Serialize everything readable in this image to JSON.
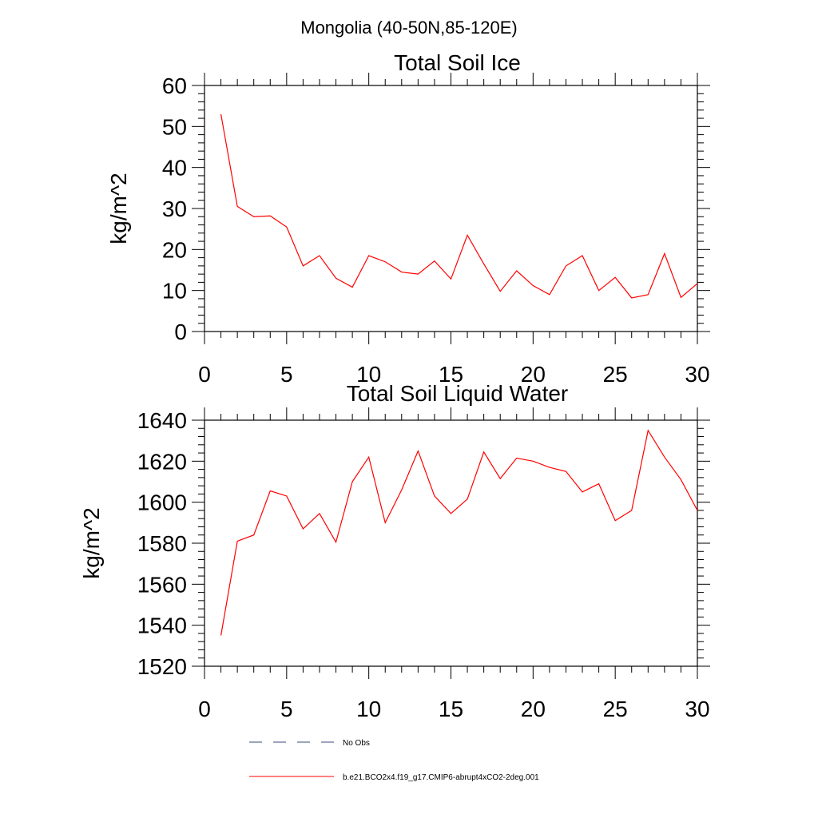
{
  "title": "Mongolia (40-50N,85-120E)",
  "legend": {
    "placement": "bottom",
    "entries": [
      {
        "label": "No Obs",
        "style": "dashed",
        "color": "#3b4a7a"
      },
      {
        "label": "b.e21.BCO2x4.f19_g17.CMIP6-abrupt4xCO2-2deg.001",
        "style": "solid",
        "color": "#ff0000"
      }
    ]
  },
  "chart_data": [
    {
      "type": "line",
      "title": "Total Soil Ice",
      "xlabel": "",
      "ylabel": "kg/m^2",
      "xlim": [
        0,
        30
      ],
      "ylim": [
        0,
        60
      ],
      "xticks": [
        0,
        5,
        10,
        15,
        20,
        25,
        30
      ],
      "yticks": [
        0,
        10,
        20,
        30,
        40,
        50,
        60
      ],
      "grid": false,
      "series": [
        {
          "color": "#ff0000",
          "x": [
            1,
            2,
            3,
            4,
            5,
            6,
            7,
            8,
            9,
            10,
            11,
            12,
            13,
            14,
            15,
            16,
            17,
            18,
            19,
            20,
            21,
            22,
            23,
            24,
            25,
            26,
            27,
            28,
            29,
            30
          ],
          "y": [
            53,
            30.5,
            28,
            28.2,
            25.5,
            16,
            18.5,
            13,
            10.8,
            18.5,
            17,
            14.5,
            14,
            17.2,
            12.8,
            23.5,
            16.5,
            9.8,
            14.8,
            11.2,
            9,
            16,
            18.5,
            10,
            13.2,
            8.2,
            9,
            19,
            8.3,
            11.7
          ]
        }
      ]
    },
    {
      "type": "line",
      "title": "Total Soil Liquid Water",
      "xlabel": "",
      "ylabel": "kg/m^2",
      "xlim": [
        0,
        30
      ],
      "ylim": [
        1520,
        1640
      ],
      "xticks": [
        0,
        5,
        10,
        15,
        20,
        25,
        30
      ],
      "yticks": [
        1520,
        1540,
        1560,
        1580,
        1600,
        1620,
        1640
      ],
      "grid": false,
      "series": [
        {
          "color": "#ff0000",
          "x": [
            1,
            2,
            3,
            4,
            5,
            6,
            7,
            8,
            9,
            10,
            11,
            12,
            13,
            14,
            15,
            16,
            17,
            18,
            19,
            20,
            21,
            22,
            23,
            24,
            25,
            26,
            27,
            28,
            29,
            30
          ],
          "y": [
            1535,
            1581,
            1584,
            1605.5,
            1603,
            1587,
            1594.5,
            1580.5,
            1610,
            1622,
            1590,
            1606,
            1625,
            1603,
            1594.5,
            1601.5,
            1624.5,
            1611.5,
            1621.5,
            1620,
            1617,
            1615,
            1605,
            1609,
            1591,
            1596,
            1635,
            1622,
            1611,
            1596
          ]
        }
      ]
    }
  ]
}
